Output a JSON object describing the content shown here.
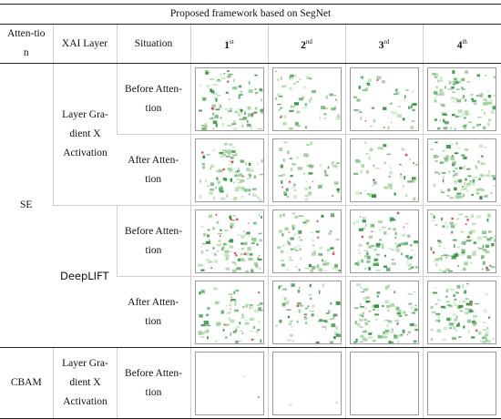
{
  "title": "Proposed framework based on SegNet",
  "headers": {
    "attention": "Atten-tion",
    "xai_layer": "XAI Layer",
    "situation": "Situation",
    "cols": [
      {
        "base": "1",
        "sup": "st"
      },
      {
        "base": "2",
        "sup": "nd"
      },
      {
        "base": "3",
        "sup": "rd"
      },
      {
        "base": "4",
        "sup": "th"
      }
    ]
  },
  "groups": [
    {
      "attention": "SE",
      "layers": [
        {
          "name": "Layer Gra-dient X Activation",
          "rows": [
            {
              "situation": "Before Atten-tion",
              "density": [
                0.55,
                0.35,
                0.3,
                0.65
              ],
              "red": [
                0.05,
                0.02,
                0.03,
                0.0
              ]
            },
            {
              "situation": "After Atten-tion",
              "density": [
                0.55,
                0.4,
                0.28,
                0.65
              ],
              "red": [
                0.03,
                0.02,
                0.06,
                0.0
              ]
            }
          ]
        },
        {
          "name": "DeepLIFT",
          "rows": [
            {
              "situation": "Before Atten-tion",
              "density": [
                0.6,
                0.45,
                0.6,
                0.6
              ],
              "red": [
                0.1,
                0.05,
                0.03,
                0.06
              ]
            },
            {
              "situation": "After Atten-tion",
              "density": [
                0.5,
                0.4,
                0.65,
                0.6
              ],
              "red": [
                0.07,
                0.03,
                0.02,
                0.02
              ]
            }
          ]
        }
      ]
    },
    {
      "attention": "CBAM",
      "layers": [
        {
          "name": "Layer Gra-dient X Activation",
          "rows": [
            {
              "situation": "Before Atten-tion",
              "density": [
                0.01,
                0.01,
                0.0,
                0.0
              ],
              "red": [
                0.01,
                0.0,
                0.0,
                0.0
              ]
            }
          ]
        }
      ]
    }
  ],
  "colors": {
    "green": "#2e8b3c",
    "light_green": "#9ccf94",
    "red": "#c8323c",
    "border": "#cfcfcf",
    "rule": "#222222"
  }
}
